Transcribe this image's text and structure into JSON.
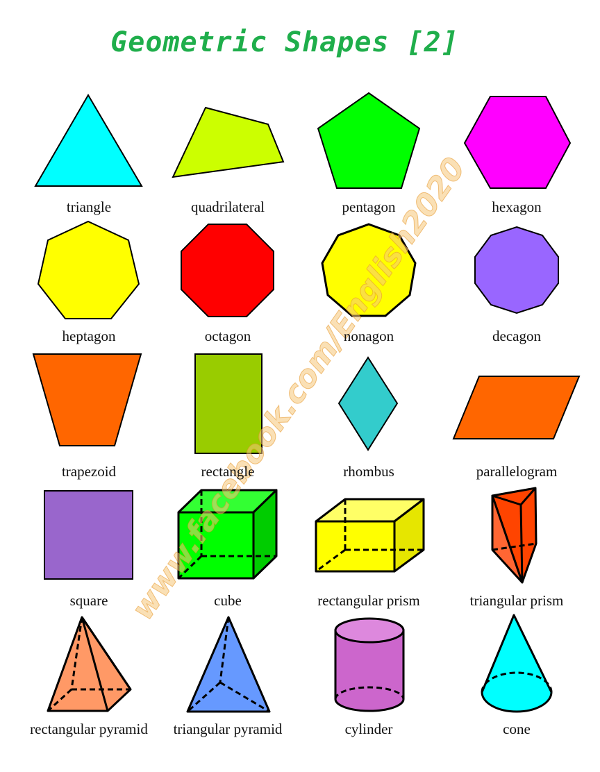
{
  "title": "Geometric Shapes [2]",
  "watermark": "www.facebook.com/English2020",
  "labels": {
    "triangle": "triangle",
    "quadrilateral": "quadrilateral",
    "pentagon": "pentagon",
    "hexagon": "hexagon",
    "heptagon": "heptagon",
    "octagon": "octagon",
    "nonagon": "nonagon",
    "decagon": "decagon",
    "trapezoid": "trapezoid",
    "rectangle": "rectangle",
    "rhombus": "rhombus",
    "parallelogram": "parallelogram",
    "square": "square",
    "cube": "cube",
    "rectangular_prism": "rectangular prism",
    "triangular_prism": "triangular prism",
    "rectangular_pyramid": "rectangular pyramid",
    "triangular_pyramid": "triangular pyramid",
    "cylinder": "cylinder",
    "cone": "cone"
  },
  "colors": {
    "title": "#1fae4b",
    "triangle": "#00ffff",
    "quadrilateral": "#ccff00",
    "pentagon": "#00ff00",
    "hexagon": "#ff00ff",
    "heptagon": "#ffff00",
    "octagon": "#ff0000",
    "nonagon": "#ffff00",
    "decagon": "#9966ff",
    "trapezoid": "#ff6600",
    "rectangle": "#99cc00",
    "rhombus": "#33cccc",
    "parallelogram": "#ff6600",
    "square": "#9966cc",
    "cube": "#00ff00",
    "rectangular_prism": "#ffff00",
    "triangular_prism": "#ff4400",
    "rectangular_pyramid": "#ff9966",
    "triangular_pyramid": "#6699ff",
    "cylinder": "#cc66cc",
    "cone": "#00ffff"
  }
}
